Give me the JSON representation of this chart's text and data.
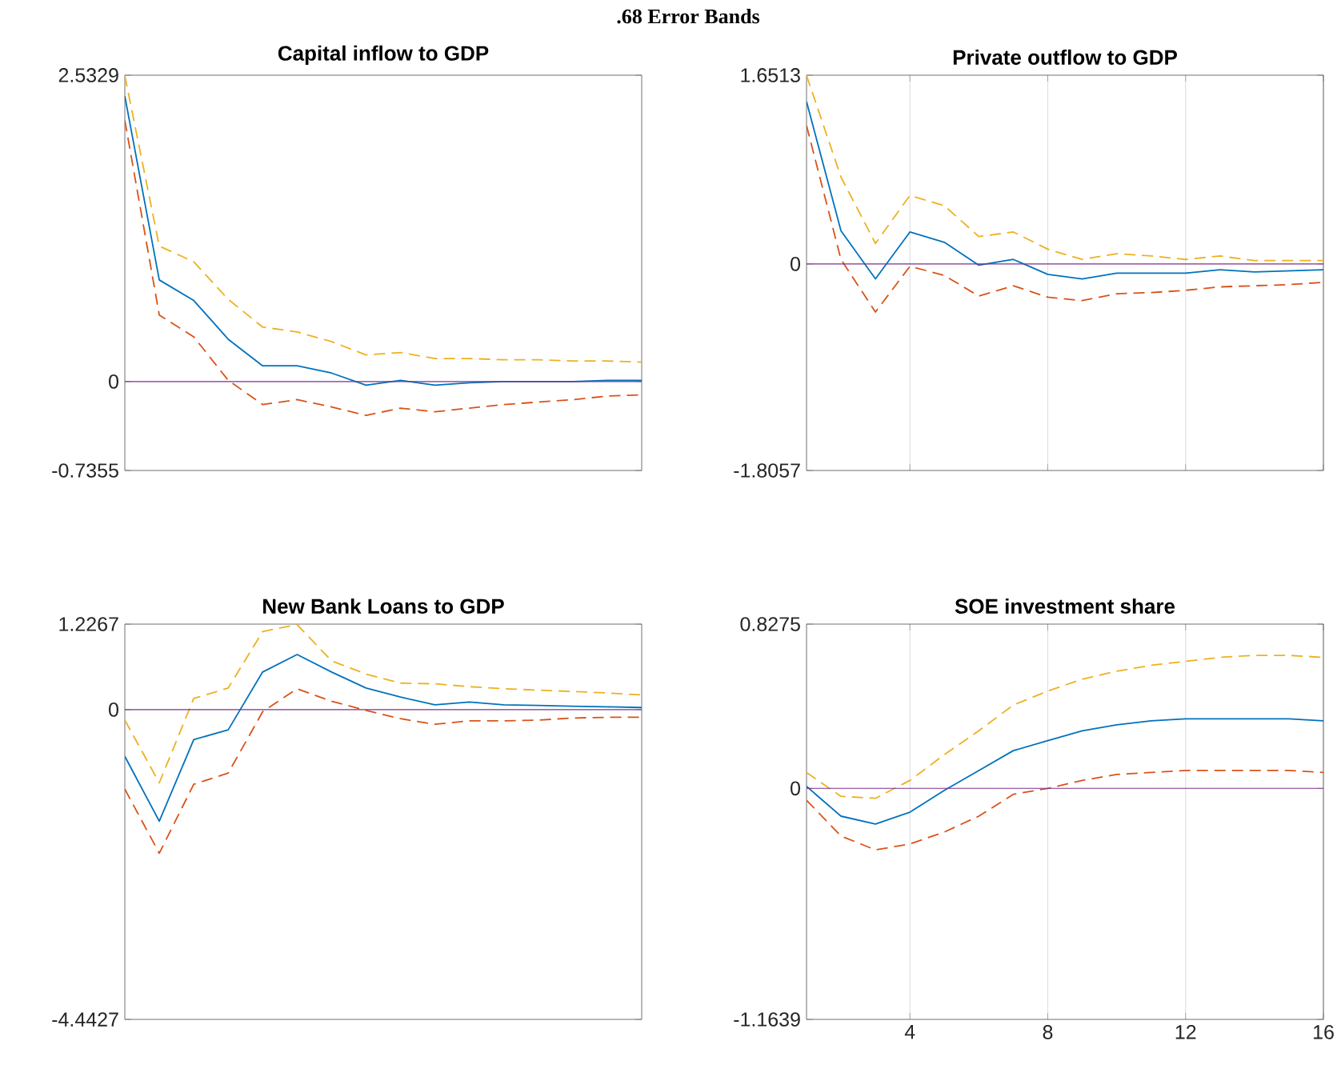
{
  "chart_data": [
    {
      "type": "line",
      "title": "Capital inflow to GDP",
      "annotations": [
        ".68 Error Bands"
      ],
      "categories": [
        null,
        null,
        null,
        null,
        null,
        null,
        null,
        null,
        null,
        null,
        null,
        null,
        null,
        null,
        null,
        null
      ],
      "ylim": [
        -0.7355,
        2.5329
      ],
      "yticks": [
        -0.7355,
        0,
        2.5329
      ],
      "ref_lines": [
        {
          "axis": "y",
          "value": 0,
          "color": "#7e2f8e"
        }
      ],
      "series": [
        {
          "color": "#0072bd",
          "line_style": "solid",
          "values": [
            2.36,
            0.84,
            0.67,
            0.35,
            0.13,
            0.13,
            0.07,
            -0.03,
            0.01,
            -0.03,
            -0.01,
            0,
            0,
            0,
            0.01,
            0.01
          ]
        },
        {
          "color": "#edb120",
          "line_style": "dashed",
          "values": [
            2.53,
            1.12,
            0.99,
            0.68,
            0.45,
            0.41,
            0.33,
            0.22,
            0.24,
            0.19,
            0.19,
            0.18,
            0.18,
            0.17,
            0.17,
            0.16
          ]
        },
        {
          "color": "#d95319",
          "line_style": "dashed",
          "values": [
            2.16,
            0.55,
            0.37,
            0.01,
            -0.19,
            -0.15,
            -0.21,
            -0.28,
            -0.22,
            -0.25,
            -0.22,
            -0.19,
            -0.17,
            -0.15,
            -0.12,
            -0.11
          ]
        }
      ]
    },
    {
      "type": "line",
      "title": "Private outflow to GDP",
      "x": [
        1,
        2,
        3,
        4,
        5,
        6,
        7,
        8,
        9,
        10,
        11,
        12,
        13,
        14,
        15,
        16
      ],
      "xlim": [
        1,
        16
      ],
      "xticks": [
        {
          "value": 4,
          "label": null
        },
        {
          "value": 8,
          "label": null
        },
        {
          "value": 12,
          "label": null
        },
        {
          "value": 16,
          "label": null
        }
      ],
      "ylim": [
        -1.8057,
        1.6513
      ],
      "yticks": [
        -1.8057,
        0,
        1.6513
      ],
      "grid": "x",
      "tick_labels": "y",
      "ref_lines": [
        {
          "axis": "y",
          "value": 0,
          "color": "#7e2f8e"
        }
      ],
      "series": [
        {
          "color": "#0072bd",
          "line_style": "solid",
          "values": [
            1.42,
            0.29,
            -0.13,
            0.28,
            0.19,
            -0.01,
            0.04,
            -0.09,
            -0.13,
            -0.08,
            -0.08,
            -0.08,
            -0.05,
            -0.07,
            -0.06,
            -0.05
          ]
        },
        {
          "color": "#edb120",
          "line_style": "dashed",
          "values": [
            1.65,
            0.76,
            0.18,
            0.6,
            0.51,
            0.24,
            0.28,
            0.13,
            0.04,
            0.09,
            0.07,
            0.04,
            0.07,
            0.03,
            0.03,
            0.03
          ]
        },
        {
          "color": "#d95319",
          "line_style": "dashed",
          "values": [
            1.21,
            0.04,
            -0.42,
            -0.02,
            -0.1,
            -0.28,
            -0.19,
            -0.29,
            -0.32,
            -0.26,
            -0.25,
            -0.23,
            -0.2,
            -0.19,
            -0.18,
            -0.16
          ]
        }
      ]
    },
    {
      "type": "line",
      "title": "New Bank Loans to GDP",
      "categories": [
        null,
        null,
        null,
        null,
        null,
        null,
        null,
        null,
        null,
        null,
        null,
        null,
        null,
        null,
        null,
        null
      ],
      "ylim": [
        -4.4427,
        1.2267
      ],
      "yticks": [
        -4.4427,
        0,
        1.2267
      ],
      "ref_lines": [
        {
          "axis": "y",
          "value": 0,
          "color": "#7e2f8e"
        }
      ],
      "series": [
        {
          "color": "#0072bd",
          "line_style": "solid",
          "values": [
            -0.67,
            -1.6,
            -0.43,
            -0.29,
            0.54,
            0.79,
            0.54,
            0.31,
            0.18,
            0.07,
            0.11,
            0.07,
            0.06,
            0.05,
            0.04,
            0.03
          ]
        },
        {
          "color": "#edb120",
          "line_style": "dashed",
          "values": [
            -0.15,
            -1.05,
            0.16,
            0.31,
            1.12,
            1.22,
            0.7,
            0.51,
            0.38,
            0.37,
            0.33,
            0.3,
            0.28,
            0.26,
            0.24,
            0.21
          ]
        },
        {
          "color": "#d95319",
          "line_style": "dashed",
          "values": [
            -1.14,
            -2.06,
            -1.07,
            -0.91,
            -0.03,
            0.3,
            0.12,
            -0.01,
            -0.13,
            -0.21,
            -0.16,
            -0.16,
            -0.15,
            -0.12,
            -0.11,
            -0.11
          ]
        }
      ]
    },
    {
      "type": "line",
      "title": "SOE investment share",
      "x": [
        1,
        2,
        3,
        4,
        5,
        6,
        7,
        8,
        9,
        10,
        11,
        12,
        13,
        14,
        15,
        16
      ],
      "xlim": [
        1,
        16
      ],
      "xticks": [
        4,
        8,
        12,
        16
      ],
      "ylim": [
        -1.1639,
        0.8275
      ],
      "yticks": [
        -1.1639,
        0,
        0.8275
      ],
      "grid": "x",
      "ref_lines": [
        {
          "axis": "y",
          "value": 0,
          "color": "#7e2f8e"
        }
      ],
      "series": [
        {
          "color": "#0072bd",
          "line_style": "solid",
          "values": [
            0.01,
            -0.14,
            -0.18,
            -0.12,
            -0.01,
            0.09,
            0.19,
            0.24,
            0.29,
            0.32,
            0.34,
            0.35,
            0.35,
            0.35,
            0.35,
            0.34
          ]
        },
        {
          "color": "#edb120",
          "line_style": "dashed",
          "values": [
            0.08,
            -0.04,
            -0.05,
            0.04,
            0.17,
            0.29,
            0.42,
            0.49,
            0.55,
            0.59,
            0.62,
            0.64,
            0.66,
            0.67,
            0.67,
            0.66
          ]
        },
        {
          "color": "#d95319",
          "line_style": "dashed",
          "values": [
            -0.06,
            -0.24,
            -0.31,
            -0.28,
            -0.22,
            -0.14,
            -0.03,
            0,
            0.04,
            0.07,
            0.08,
            0.09,
            0.09,
            0.09,
            0.09,
            0.08
          ]
        }
      ]
    }
  ]
}
